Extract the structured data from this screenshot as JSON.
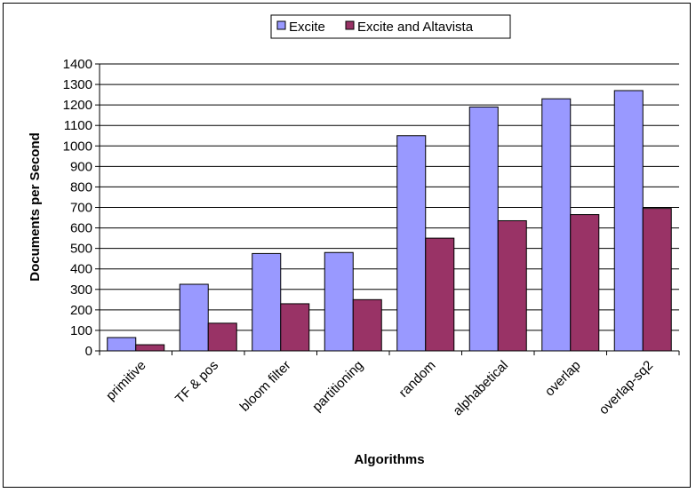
{
  "chart_data": {
    "type": "bar",
    "categories": [
      "primitive",
      "TF & pos",
      "bloom  filter",
      "partitioning",
      "random",
      "alphabetical",
      "overlap",
      "overlap-sq2"
    ],
    "series": [
      {
        "name": "Excite",
        "color": "#9999ff",
        "values": [
          65,
          325,
          475,
          480,
          1050,
          1190,
          1230,
          1270
        ]
      },
      {
        "name": "Excite and Altavista",
        "color": "#993366",
        "values": [
          30,
          135,
          230,
          250,
          550,
          635,
          665,
          695
        ]
      }
    ],
    "title": "",
    "xlabel": "Algorithms",
    "ylabel": "Documents per Second",
    "ylim": [
      0,
      1400
    ],
    "yticks": [
      0,
      100,
      200,
      300,
      400,
      500,
      600,
      700,
      800,
      900,
      1000,
      1100,
      1200,
      1300,
      1400
    ],
    "grid": true,
    "legend_position": "top"
  }
}
